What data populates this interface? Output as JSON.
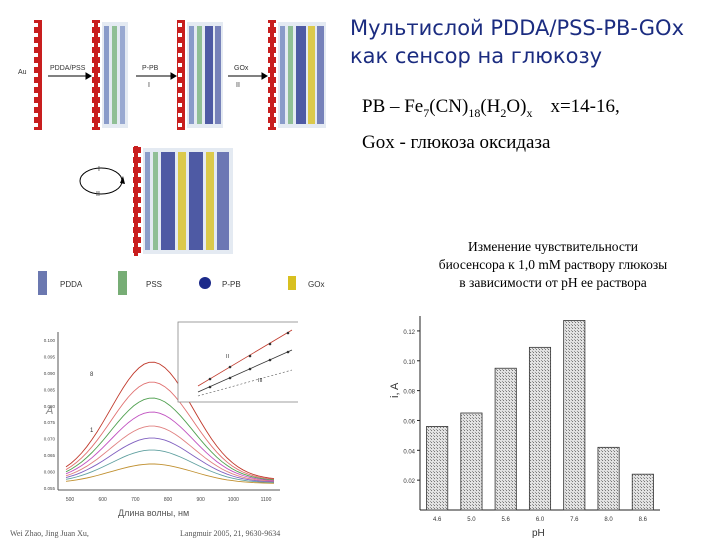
{
  "title": {
    "line1": "Мультислой PDDA/PSS-PB-GOx",
    "line2": "как сенсор на глюкозу"
  },
  "formula": {
    "lhs": "PB – Fe",
    "sub1": "7",
    "mid1": "(CN)",
    "sub2": "18",
    "mid2": "(H",
    "sub3": "2",
    "mid3": "O)",
    "sub4": "x",
    "rhs": "x=14-16,"
  },
  "gox_line": "Gox - глюкоза оксидаза",
  "caption": {
    "line1": "Изменение чувствительности",
    "line2": "биосенсора к 1,0 mM раствору глюкозы",
    "line3": "в зависимости от pH ее раствора"
  },
  "scheme": {
    "au_label": "Au",
    "step1_label": "PDDA/PSS",
    "step2_label": "P-PB",
    "step2_roman": "I",
    "step3_label": "GOx",
    "step3_roman": "II",
    "cycle_top": "I",
    "cycle_bottom": "II"
  },
  "legend": {
    "items": [
      {
        "label": "PDDA",
        "color": "#2c3f8f"
      },
      {
        "label": "PSS",
        "color": "#3d8a3a"
      },
      {
        "label": "P-PB",
        "color": "#1c2a8a"
      },
      {
        "label": "GOx",
        "color": "#d8c020"
      }
    ]
  },
  "spectra": {
    "xlabel": "Длина волны, нм",
    "ylabel": "A",
    "xticks": [
      "500",
      "600",
      "700",
      "800",
      "900",
      "1000",
      "1100"
    ],
    "yticks": [
      "0.100",
      "0.095",
      "0.090",
      "0.085",
      "0.080",
      "0.075",
      "0.070",
      "0.065",
      "0.060",
      "0.055"
    ],
    "curve_labels": [
      "8",
      "1"
    ],
    "curve_colors": [
      "#c0392b",
      "#e07070",
      "#50a050",
      "#c050c0",
      "#e08080",
      "#8060c0",
      "#60a0a0",
      "#c09030"
    ],
    "inset_labels": [
      "II",
      "III"
    ],
    "cite_left": "Wei Zhao, Jing Juan Xu,",
    "cite_right": "Langmuir 2005, 21, 9630-9634"
  },
  "chart_data": {
    "type": "bar",
    "categories": [
      "4.6",
      "5.0",
      "5.6",
      "6.0",
      "7.6",
      "8.0",
      "8.6"
    ],
    "values": [
      0.056,
      0.065,
      0.095,
      0.109,
      0.127,
      0.042,
      0.024
    ],
    "xlabel": "pH",
    "ylabel": "i, A",
    "ylim": [
      0,
      0.13
    ],
    "yticks": [
      "0.12",
      "0.10",
      "0.08",
      "0.06",
      "0.04",
      "0.02"
    ],
    "bar_color": "#d8d8d8",
    "grid": false,
    "legend": "none"
  }
}
